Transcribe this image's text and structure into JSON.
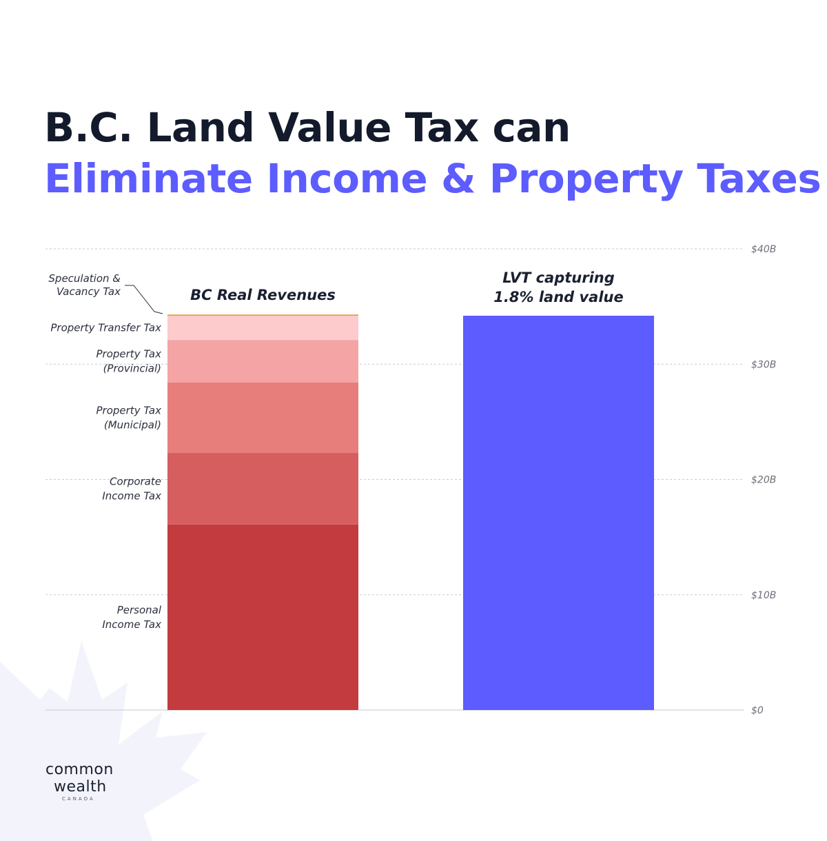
{
  "title": {
    "line1": "B.C. Land Value Tax can",
    "line2": "Eliminate Income & Property Taxes"
  },
  "chart_data": {
    "type": "bar",
    "stacked": true,
    "categories": [
      "BC Real Revenues",
      "LVT capturing 1.8% land value"
    ],
    "ylim": [
      0,
      40
    ],
    "yticks": [
      0,
      10,
      20,
      30,
      40
    ],
    "ytick_labels": [
      "$0",
      "$10B",
      "$20B",
      "$30B",
      "$40B"
    ],
    "grid": true,
    "stack_series": [
      {
        "name": "Personal Income Tax",
        "lines": [
          "Personal",
          "Income Tax"
        ],
        "value": 16.1,
        "color": "#c33b3f"
      },
      {
        "name": "Corporate Income Tax",
        "lines": [
          "Corporate",
          "Income Tax"
        ],
        "value": 6.2,
        "color": "#d65e5e"
      },
      {
        "name": "Property Tax (Municipal)",
        "lines": [
          "Property Tax",
          "(Municipal)"
        ],
        "value": 6.1,
        "color": "#e77e7c"
      },
      {
        "name": "Property Tax (Provincial)",
        "lines": [
          "Property Tax",
          "(Provincial)"
        ],
        "value": 3.7,
        "color": "#f4a4a4"
      },
      {
        "name": "Property Transfer Tax",
        "lines": [
          "Property Transfer Tax"
        ],
        "value": 2.1,
        "color": "#fdcbcb"
      },
      {
        "name": "Speculation & Vacancy Tax",
        "lines": [
          "Speculation &",
          "Vacancy Tax"
        ],
        "value": 0.1,
        "color": "#e79a3c"
      }
    ],
    "bar1_title": [
      "BC Real Revenues"
    ],
    "bar2_title": [
      "LVT capturing",
      "1.8% land value"
    ],
    "lvt_value": 34.2,
    "lvt_color": "#5d5cff"
  },
  "logo": {
    "line1": "common",
    "line2": "wealth",
    "line3": "CANADA"
  },
  "colors": {
    "title_dark": "#131a2b",
    "title_accent": "#5d5cff",
    "watermark": "#f3f4fb"
  }
}
